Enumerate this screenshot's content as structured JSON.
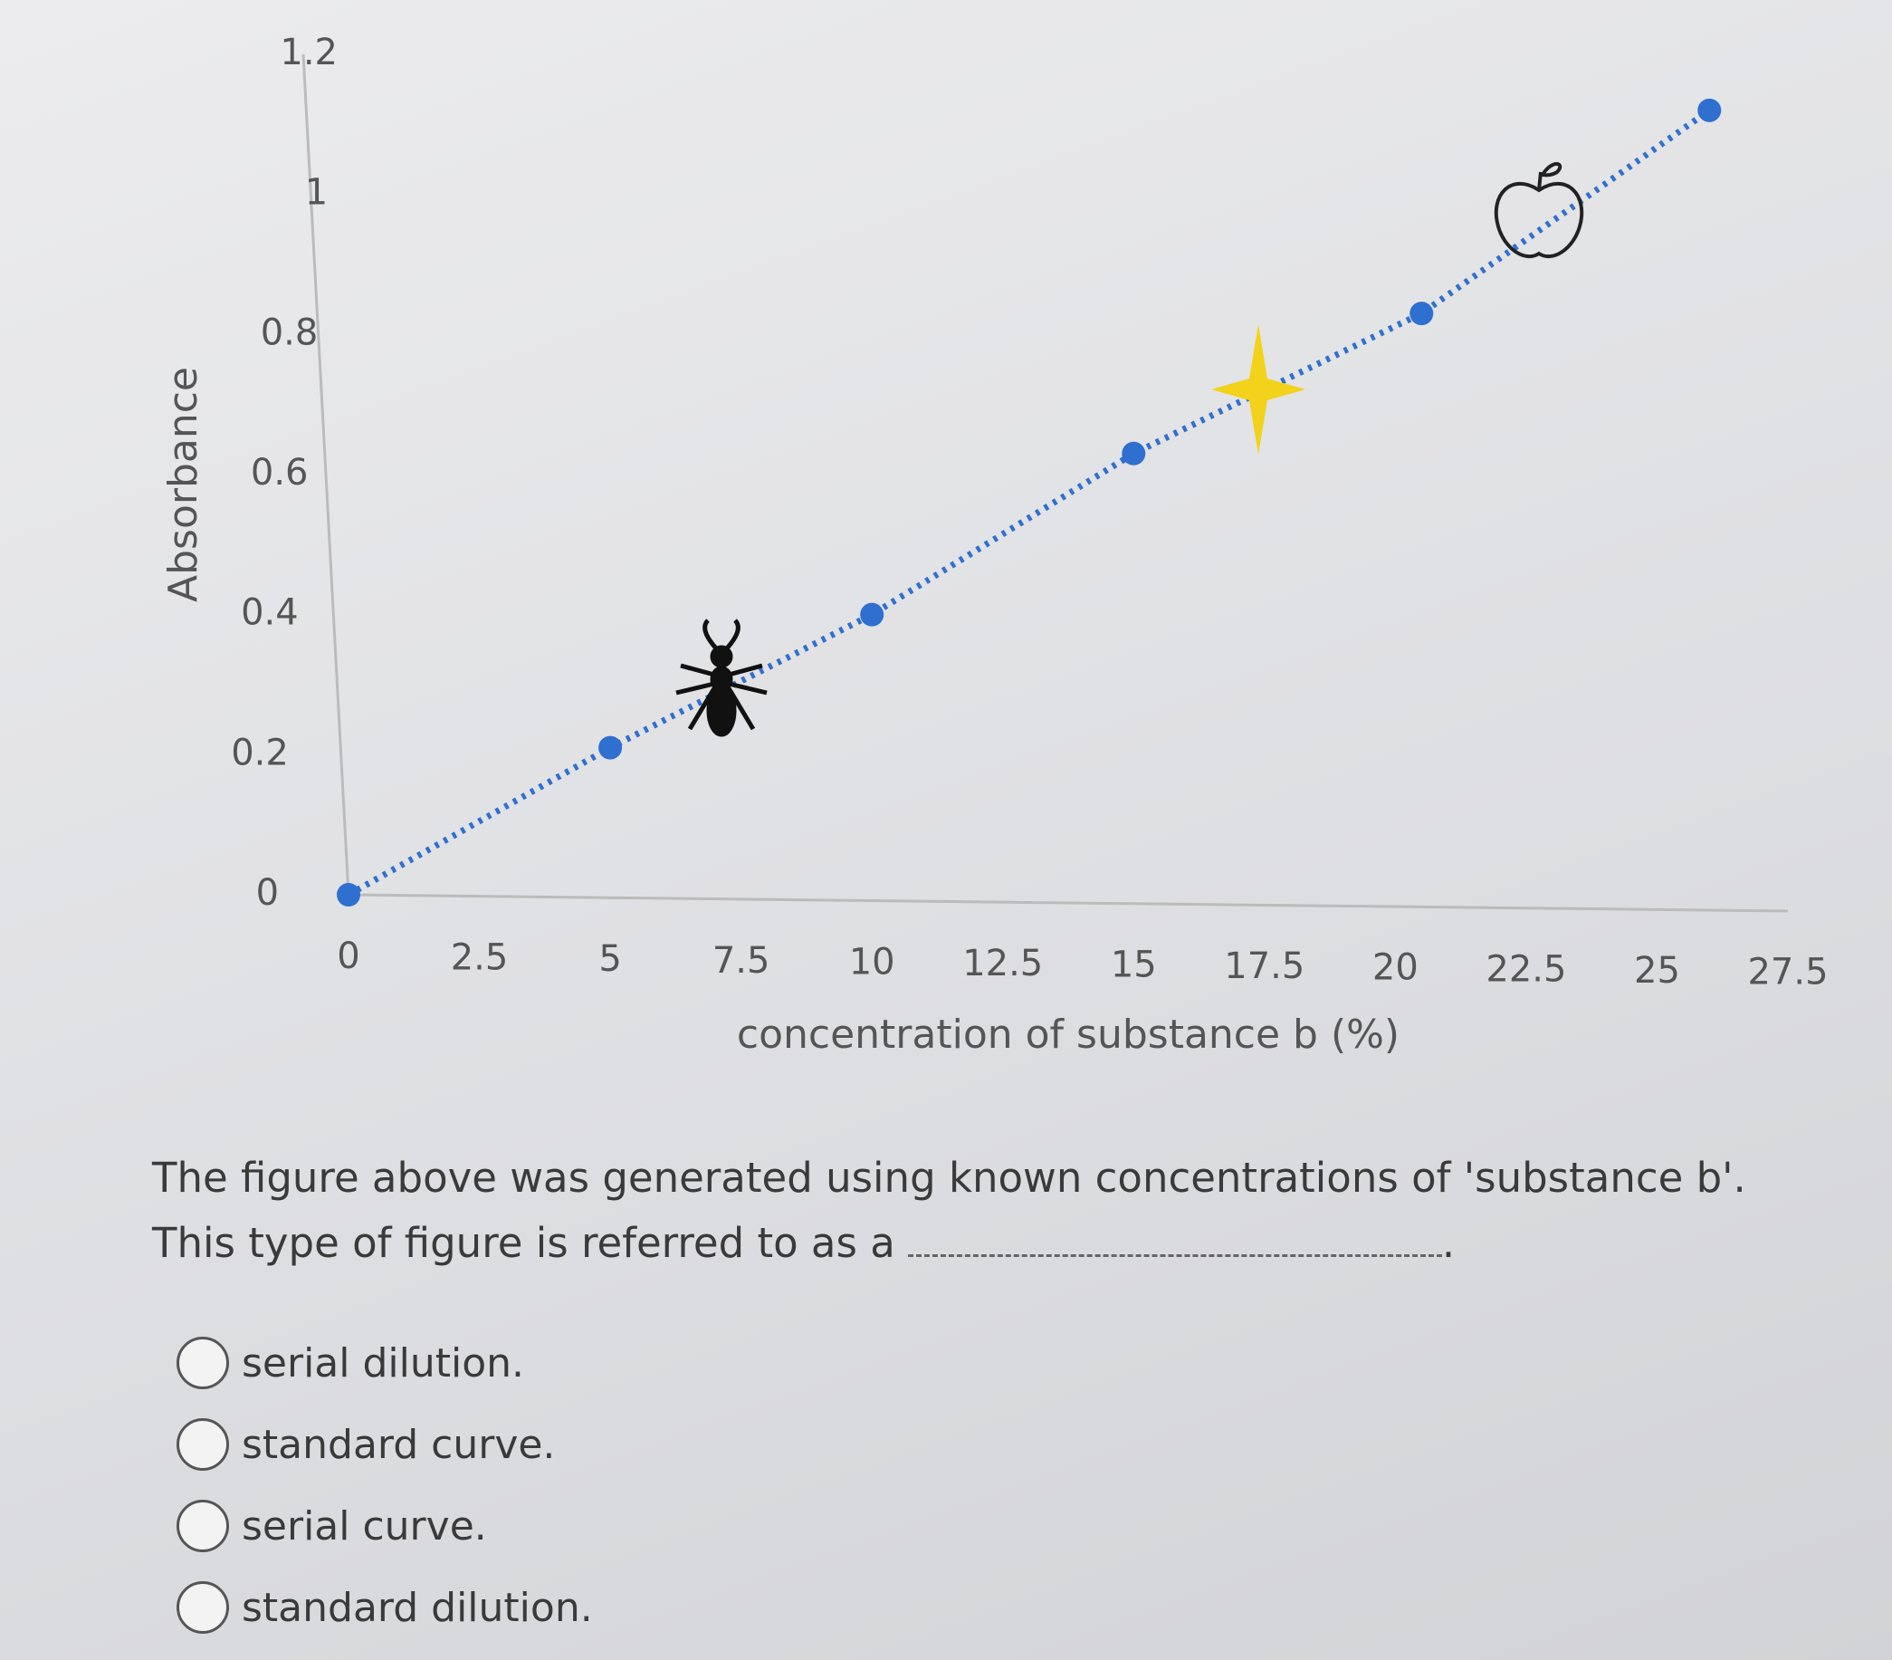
{
  "chart_data": {
    "type": "line",
    "x_label": "concentration of substance b (%)",
    "y_label": "Absorbance",
    "x": [
      0,
      5,
      10,
      15,
      20.5,
      26
    ],
    "series": [
      {
        "name": "absorbance",
        "color": "#2f6fd0",
        "values": [
          0,
          0.21,
          0.4,
          0.63,
          0.83,
          1.12
        ]
      }
    ],
    "xlim": [
      0,
      27.5
    ],
    "xticks": [
      0,
      2.5,
      5,
      7.5,
      10,
      12.5,
      15,
      17.5,
      20,
      22.5,
      25,
      27.5
    ],
    "ylim": [
      0,
      1.2
    ],
    "yticks": [
      0,
      0.2,
      0.4,
      0.6,
      0.8,
      1,
      1.2
    ],
    "grid": false
  },
  "question": {
    "text": "The figure above was generated using known concentrations of 'substance b'.  This type of figure is referred to as a",
    "end": "."
  },
  "options": [
    "serial dilution.",
    "standard curve.",
    "serial curve.",
    "standard dilution."
  ]
}
